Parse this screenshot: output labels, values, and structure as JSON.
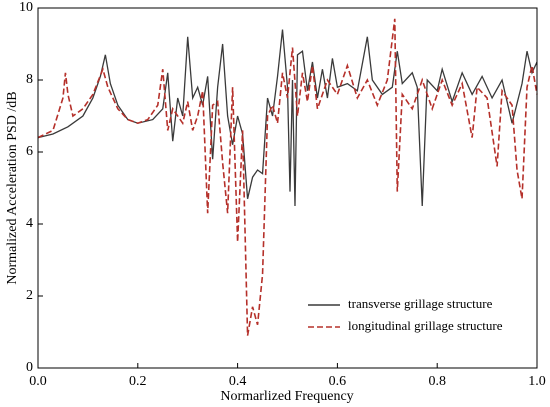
{
  "chart_data": {
    "type": "line",
    "xlabel": "Normarlized Frequency",
    "ylabel": "Normalized Acceleration PSD /dB",
    "xlim": [
      0,
      1
    ],
    "ylim": [
      0,
      10
    ],
    "xticks": [
      {
        "value": 0,
        "label": "0.0"
      },
      0.2,
      0.4,
      0.6,
      0.8,
      {
        "value": 1,
        "label": "1.0"
      }
    ],
    "yticks": [
      0,
      2,
      4,
      6,
      8,
      10
    ],
    "legend": "lower right",
    "series": [
      {
        "name": "transverse grillage structure",
        "color": "#3a3a3a",
        "dash": "solid",
        "x": [
          0,
          0.03,
          0.06,
          0.09,
          0.11,
          0.125,
          0.135,
          0.145,
          0.16,
          0.18,
          0.2,
          0.23,
          0.25,
          0.26,
          0.27,
          0.28,
          0.29,
          0.3,
          0.31,
          0.32,
          0.33,
          0.34,
          0.35,
          0.36,
          0.37,
          0.38,
          0.39,
          0.4,
          0.41,
          0.42,
          0.43,
          0.44,
          0.45,
          0.46,
          0.47,
          0.48,
          0.49,
          0.5,
          0.505,
          0.51,
          0.515,
          0.52,
          0.53,
          0.54,
          0.55,
          0.56,
          0.57,
          0.58,
          0.59,
          0.6,
          0.62,
          0.64,
          0.66,
          0.67,
          0.69,
          0.71,
          0.72,
          0.73,
          0.75,
          0.76,
          0.77,
          0.78,
          0.8,
          0.81,
          0.83,
          0.85,
          0.87,
          0.89,
          0.91,
          0.93,
          0.95,
          0.97,
          0.98,
          0.99,
          1.0
        ],
        "values": [
          6.4,
          6.5,
          6.7,
          7.0,
          7.5,
          8.1,
          8.7,
          7.9,
          7.3,
          6.9,
          6.8,
          6.9,
          7.2,
          8.2,
          6.3,
          7.5,
          7.0,
          9.2,
          7.5,
          7.8,
          7.3,
          8.1,
          5.8,
          7.8,
          9.0,
          7.0,
          6.2,
          7.0,
          6.5,
          4.7,
          5.3,
          5.5,
          5.4,
          7.5,
          7.0,
          8.1,
          9.4,
          7.8,
          4.9,
          8.0,
          4.5,
          8.7,
          8.8,
          7.7,
          8.5,
          7.5,
          8.3,
          7.5,
          8.6,
          7.8,
          7.9,
          7.7,
          9.2,
          8.0,
          7.6,
          7.8,
          8.8,
          7.9,
          8.2,
          7.8,
          4.5,
          8.0,
          7.7,
          8.3,
          7.4,
          8.2,
          7.6,
          8.1,
          7.5,
          8.0,
          6.8,
          7.9,
          8.8,
          8.2,
          8.5
        ]
      },
      {
        "name": "longitudinal grillage structure",
        "color": "#b5302a",
        "dash": "dashed",
        "x": [
          0,
          0.03,
          0.05,
          0.055,
          0.06,
          0.07,
          0.09,
          0.11,
          0.13,
          0.14,
          0.16,
          0.18,
          0.2,
          0.22,
          0.24,
          0.25,
          0.26,
          0.27,
          0.29,
          0.3,
          0.31,
          0.32,
          0.33,
          0.34,
          0.35,
          0.36,
          0.37,
          0.38,
          0.39,
          0.4,
          0.41,
          0.42,
          0.43,
          0.44,
          0.45,
          0.46,
          0.47,
          0.48,
          0.49,
          0.5,
          0.51,
          0.52,
          0.53,
          0.54,
          0.55,
          0.56,
          0.58,
          0.6,
          0.62,
          0.64,
          0.66,
          0.68,
          0.7,
          0.715,
          0.72,
          0.73,
          0.75,
          0.77,
          0.79,
          0.81,
          0.83,
          0.85,
          0.87,
          0.88,
          0.9,
          0.92,
          0.93,
          0.95,
          0.96,
          0.97,
          0.98,
          0.99,
          1.0
        ],
        "values": [
          6.4,
          6.6,
          7.5,
          8.2,
          7.6,
          7.0,
          7.2,
          7.6,
          8.3,
          7.8,
          7.2,
          6.9,
          6.8,
          6.9,
          7.3,
          8.3,
          6.6,
          7.2,
          6.8,
          7.4,
          6.6,
          7.0,
          7.7,
          4.3,
          7.3,
          7.4,
          5.7,
          4.3,
          7.8,
          3.5,
          6.6,
          0.9,
          1.7,
          1.2,
          2.6,
          7.0,
          7.3,
          6.8,
          8.2,
          7.5,
          8.9,
          7.0,
          8.2,
          7.4,
          8.4,
          7.2,
          8.0,
          7.6,
          8.4,
          7.5,
          8.0,
          7.3,
          8.0,
          9.7,
          4.9,
          7.6,
          7.2,
          8.0,
          7.2,
          8.0,
          7.3,
          7.9,
          6.4,
          7.8,
          7.5,
          5.6,
          7.7,
          7.3,
          5.5,
          4.7,
          7.8,
          8.4,
          7.6
        ]
      }
    ]
  }
}
